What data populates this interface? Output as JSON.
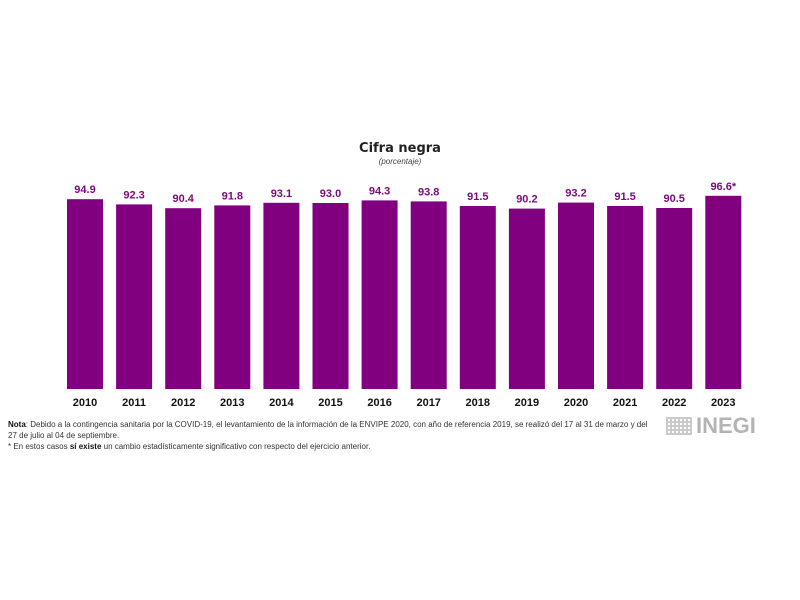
{
  "chart_data": {
    "type": "bar",
    "title": "Cifra negra",
    "subtitle": "(porcentaje)",
    "xlabel": "",
    "ylabel": "",
    "ylim": [
      0,
      100
    ],
    "grid": false,
    "legend": "none",
    "bar_color": "#800080",
    "categories": [
      "2010",
      "2011",
      "2012",
      "2013",
      "2014",
      "2015",
      "2016",
      "2017",
      "2018",
      "2019",
      "2020",
      "2021",
      "2022",
      "2023"
    ],
    "values": [
      94.9,
      92.3,
      90.4,
      91.8,
      93.1,
      93.0,
      94.3,
      93.8,
      91.5,
      90.2,
      93.2,
      91.5,
      90.5,
      96.6
    ],
    "data_labels": [
      "94.9",
      "92.3",
      "90.4",
      "91.8",
      "93.1",
      "93.0",
      "94.3",
      "93.8",
      "91.5",
      "90.2",
      "93.2",
      "91.5",
      "90.5",
      "96.6*"
    ],
    "annotations": [
      "* significant change vs previous year (2023)"
    ]
  },
  "notes": {
    "nota_label": "Nota",
    "nota_text": ": Debido a la contingencia sanitaria por la COVID-19, el levantamiento de la información de la ENVIPE 2020, con año de referencia 2019, se realizó del 17 al 31 de marzo y del 27 de julio al 04 de septiembre.",
    "asterisk_prefix": "* En estos casos ",
    "asterisk_bold": "sí existe",
    "asterisk_suffix": " un cambio estadísticamente significativo con respecto del ejercicio anterior."
  },
  "logo": {
    "text": "INEGI",
    "icon": "inegi-logo-icon"
  }
}
